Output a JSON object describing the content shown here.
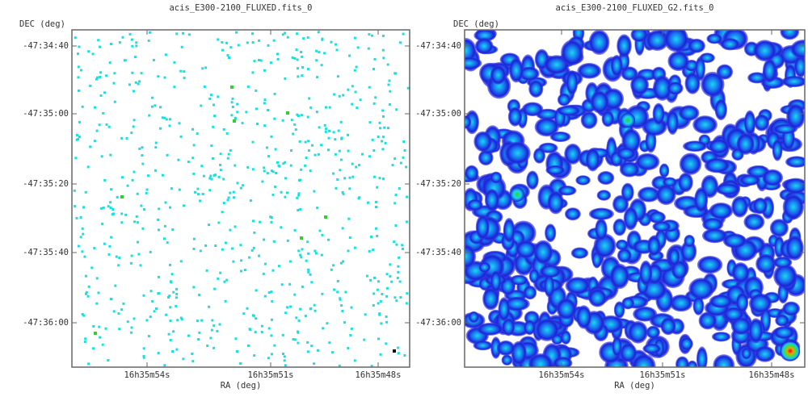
{
  "panels": [
    {
      "title": "acis_E300-2100_FLUXED.fits_0",
      "y_label": "DEC (deg)",
      "x_label": "RA (deg)",
      "yticks": [
        "-47:34:40",
        "-47:35:00",
        "-47:35:20",
        "-47:35:40",
        "-47:36:00"
      ],
      "xticks": [
        "16h35m54s",
        "16h35m51s",
        "16h35m48s"
      ]
    },
    {
      "title": "acis_E300-2100_FLUXED_G2.fits_0",
      "y_label": "DEC (deg)",
      "x_label": "RA (deg)",
      "yticks": [
        "-47:34:40",
        "-47:35:00",
        "-47:35:20",
        "-47:35:40",
        "-47:36:00"
      ],
      "xticks": [
        "16h35m54s",
        "16h35m51s",
        "16h35m48s"
      ]
    }
  ]
}
